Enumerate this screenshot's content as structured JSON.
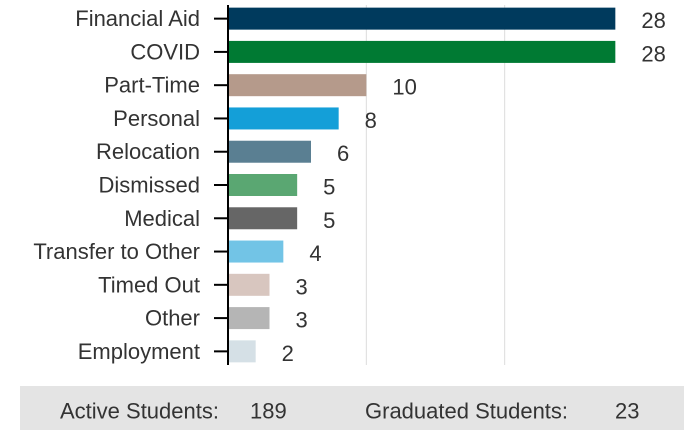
{
  "chart_data": {
    "type": "bar",
    "orientation": "horizontal",
    "categories": [
      "Financial Aid",
      "COVID",
      "Part-Time",
      "Personal",
      "Relocation",
      "Dismissed",
      "Medical",
      "Transfer to Other",
      "Timed Out",
      "Other",
      "Employment"
    ],
    "values": [
      28,
      28,
      10,
      8,
      6,
      5,
      5,
      4,
      3,
      3,
      2
    ],
    "colors": [
      "#003a5d",
      "#007a33",
      "#b59a8b",
      "#149fd8",
      "#5a7f92",
      "#5aa772",
      "#666666",
      "#72c4e6",
      "#d8c6bf",
      "#b5b5b5",
      "#d5e0e6"
    ],
    "xlim": [
      0,
      30
    ],
    "xgrid": [
      10,
      20
    ]
  },
  "footer": {
    "items": [
      {
        "label": "Active Students:",
        "value": "189"
      },
      {
        "label": "Graduated Students:",
        "value": "23"
      }
    ]
  }
}
